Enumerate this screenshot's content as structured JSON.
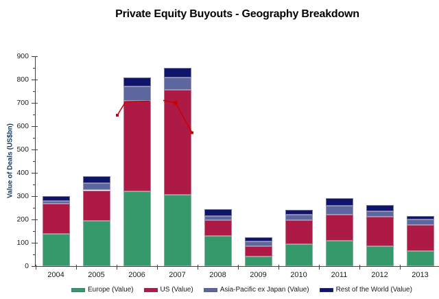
{
  "chart_data": {
    "type": "bar",
    "stacked": true,
    "title": "Private Equity Buyouts - Geography Breakdown",
    "xlabel": "",
    "ylabel": "Value of Deals (US$bn)",
    "ylim": [
      0,
      900
    ],
    "y_ticks": [
      0,
      100,
      200,
      300,
      400,
      500,
      600,
      700,
      800,
      900
    ],
    "y_minor_tick_step": 50,
    "grid": false,
    "legend_position": "bottom",
    "categories": [
      "2004",
      "2005",
      "2006",
      "2007",
      "2008",
      "2009",
      "2010",
      "2011",
      "2012",
      "2013"
    ],
    "series": [
      {
        "name": "Europe (Value)",
        "color": "#36996B",
        "values": [
          138,
          195,
          320,
          305,
          130,
          42,
          95,
          108,
          85,
          66
        ]
      },
      {
        "name": "US (Value)",
        "color": "#AD1A45",
        "values": [
          130,
          130,
          390,
          450,
          66,
          43,
          103,
          112,
          128,
          110
        ]
      },
      {
        "name": "Asia-Pacific ex Japan (Value)",
        "color": "#5E66A0",
        "values": [
          10,
          30,
          60,
          55,
          18,
          22,
          24,
          40,
          22,
          25
        ]
      },
      {
        "name": "Rest of the World (Value)",
        "color": "#10146B",
        "values": [
          22,
          30,
          40,
          40,
          31,
          16,
          20,
          30,
          27,
          15
        ]
      }
    ],
    "annotation_line": {
      "color": "#CC0000",
      "note": "partial red overlay line with markers across the 2006 and 2007 bars, approx values 650-710 falling to 570",
      "segments": [
        {
          "points": [
            [
              171,
              168
            ],
            [
              183,
              148.5
            ],
            [
              218,
              147.5
            ]
          ]
        },
        {
          "points": [
            [
              238,
              146.5
            ],
            [
              256,
              150
            ],
            [
              280,
              193.5
            ]
          ]
        }
      ],
      "markers": [
        {
          "x": 171,
          "y": 168,
          "shape": "square"
        },
        {
          "x": 256,
          "y": 150,
          "shape": "circle"
        },
        {
          "x": 280,
          "y": 193.5,
          "shape": "square"
        }
      ]
    }
  }
}
